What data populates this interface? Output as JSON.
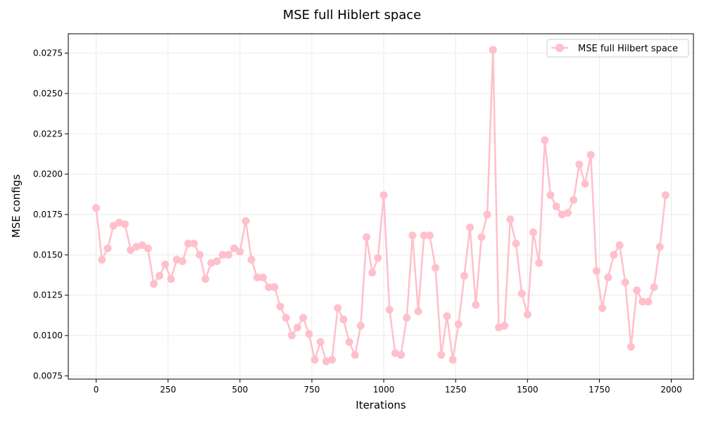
{
  "chart_data": {
    "type": "line",
    "title": "MSE full Hiblert space",
    "xlabel": "Iterations",
    "ylabel": "MSE configs",
    "xlim": [
      -97,
      2077
    ],
    "ylim": [
      0.0073,
      0.0287
    ],
    "xticks": [
      0,
      250,
      500,
      750,
      1000,
      1250,
      1500,
      1750,
      2000
    ],
    "yticks": [
      0.0075,
      0.01,
      0.0125,
      0.015,
      0.0175,
      0.02,
      0.0225,
      0.025,
      0.0275
    ],
    "ytick_labels": [
      "0.0075",
      "0.0100",
      "0.0125",
      "0.0150",
      "0.0175",
      "0.0200",
      "0.0225",
      "0.0250",
      "0.0275"
    ],
    "grid": true,
    "legend_position": "top-right",
    "series": [
      {
        "name": "MSE full Hilbert space",
        "color": "#ffc0cb",
        "marker": "circle",
        "x": [
          0,
          20,
          40,
          60,
          80,
          100,
          120,
          140,
          160,
          180,
          200,
          220,
          240,
          260,
          280,
          300,
          320,
          340,
          360,
          380,
          400,
          420,
          440,
          460,
          480,
          500,
          520,
          540,
          560,
          580,
          600,
          620,
          640,
          660,
          680,
          700,
          720,
          740,
          760,
          780,
          800,
          820,
          840,
          860,
          880,
          900,
          920,
          940,
          960,
          980,
          1000,
          1020,
          1040,
          1060,
          1080,
          1100,
          1120,
          1140,
          1160,
          1180,
          1200,
          1220,
          1240,
          1260,
          1280,
          1300,
          1320,
          1340,
          1360,
          1380,
          1400,
          1420,
          1440,
          1460,
          1480,
          1500,
          1520,
          1540,
          1560,
          1580,
          1600,
          1620,
          1640,
          1660,
          1680,
          1700,
          1720,
          1740,
          1760,
          1780,
          1800,
          1820,
          1840,
          1860,
          1880,
          1900,
          1920,
          1940,
          1960,
          1980
        ],
        "values": [
          0.0179,
          0.0147,
          0.0154,
          0.0168,
          0.017,
          0.0169,
          0.0153,
          0.0155,
          0.0156,
          0.0154,
          0.0132,
          0.0137,
          0.0144,
          0.0135,
          0.0147,
          0.0146,
          0.0157,
          0.0157,
          0.015,
          0.0135,
          0.0145,
          0.0146,
          0.015,
          0.015,
          0.0154,
          0.0152,
          0.0171,
          0.0147,
          0.0136,
          0.0136,
          0.013,
          0.013,
          0.0118,
          0.0111,
          0.01,
          0.0105,
          0.0111,
          0.0101,
          0.0085,
          0.0096,
          0.0084,
          0.0085,
          0.0117,
          0.011,
          0.0096,
          0.0088,
          0.0106,
          0.0161,
          0.0139,
          0.0148,
          0.0187,
          0.0116,
          0.0089,
          0.0088,
          0.0111,
          0.0162,
          0.0115,
          0.0162,
          0.0162,
          0.0142,
          0.0088,
          0.0112,
          0.0085,
          0.0107,
          0.0137,
          0.0167,
          0.0119,
          0.0161,
          0.0175,
          0.0277,
          0.0105,
          0.0106,
          0.0172,
          0.0157,
          0.0126,
          0.0113,
          0.0164,
          0.0145,
          0.0221,
          0.0187,
          0.018,
          0.0175,
          0.0176,
          0.0184,
          0.0206,
          0.0194,
          0.0212,
          0.014,
          0.0117,
          0.0136,
          0.015,
          0.0156,
          0.0133,
          0.0093,
          0.0128,
          0.0121,
          0.0121,
          0.013,
          0.0155,
          0.0187
        ]
      }
    ]
  }
}
